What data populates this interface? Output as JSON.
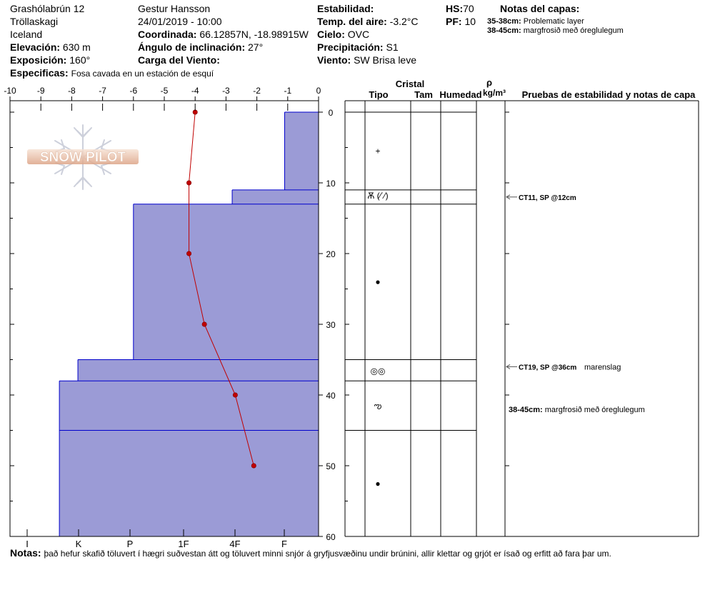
{
  "header": {
    "location": "Grashólabrún 12",
    "region": "Tröllaskagi",
    "country": "Iceland",
    "elevation_label": "Elevación:",
    "elevation_value": "630 m",
    "aspect_label": "Exposición:",
    "aspect_value": "160°",
    "specifics_label": "Especificas:",
    "specifics_value": "Fosa cavada en un estación de esquí",
    "observer": "Gestur Hansson",
    "datetime": "24/01/2019 - 10:00",
    "coord_label": "Coordinada:",
    "coord_value": "66.12857N, -18.98915W",
    "slope_label": "Ángulo de inclinación:",
    "slope_value": "27°",
    "wind_load_label": "Carga del Viento:",
    "stability_label": "Estabilidad:",
    "air_temp_label": "Temp. del aire:",
    "air_temp_value": "-3.2°C",
    "sky_label": "Cielo:",
    "sky_value": "OVC",
    "precip_label": "Precipitación:",
    "precip_value": "S1",
    "wind_label": "Viento:",
    "wind_value": "SW Brisa leve",
    "hs_label": "HS:",
    "hs_value": "70",
    "pf_label": "PF:",
    "pf_value": "10",
    "layer_notes_title": "Notas del capas:",
    "layer_notes": [
      {
        "range": "35-38cm:",
        "text": "Problematic layer"
      },
      {
        "range": "38-45cm:",
        "text": "margfrosið með óreglulegum"
      }
    ]
  },
  "logo": {
    "text": "SNOW PILOT"
  },
  "colors": {
    "hardness_fill": "#9b9bd6",
    "hardness_line": "#0000cc",
    "temp_line": "#c00000"
  },
  "chart_data": {
    "type": "area",
    "x_axis_top": {
      "ticks": [
        "-10",
        "-9",
        "-8",
        "-7",
        "-6",
        "-5",
        "-4",
        "-3",
        "-2",
        "-1",
        "0"
      ],
      "range": [
        -10,
        0
      ]
    },
    "x_axis_bottom": {
      "ticks": [
        "I",
        "K",
        "P",
        "1F",
        "4F",
        "F"
      ]
    },
    "y_axis": {
      "ticks": [
        "0",
        "10",
        "20",
        "30",
        "40",
        "50",
        "60"
      ],
      "range": [
        0,
        60
      ]
    },
    "temperature_profile": [
      {
        "depth": 0,
        "temp": -4.0
      },
      {
        "depth": 10,
        "temp": -4.2
      },
      {
        "depth": 20,
        "temp": -4.2
      },
      {
        "depth": 30,
        "temp": -3.7
      },
      {
        "depth": 40,
        "temp": -2.7
      },
      {
        "depth": 50,
        "temp": -2.1
      }
    ],
    "hardness_layers": [
      {
        "top": 0,
        "bottom": 11,
        "x": -1.1
      },
      {
        "top": 11,
        "bottom": 13,
        "x": -2.8
      },
      {
        "top": 13,
        "bottom": 35,
        "x": -6.0
      },
      {
        "top": 35,
        "bottom": 38,
        "x": -7.8
      },
      {
        "top": 38,
        "bottom": 45,
        "x": -8.4
      },
      {
        "top": 45,
        "bottom": 60,
        "x": -8.4
      }
    ]
  },
  "table": {
    "cristal": "Cristal",
    "tipo": "Tipo",
    "tam": "Tam",
    "humedad": "Humedad",
    "rho": "ρ",
    "density_unit": "kg/m³",
    "tests_header": "Pruebas de estabilidad y notas de capa",
    "boundaries": [
      0,
      11,
      13,
      35,
      38,
      45
    ],
    "grains": [
      {
        "depth": 5.5,
        "symbol": "+"
      },
      {
        "depth": 11.8,
        "symbol": "Ѫ (⁄˙⁄)"
      },
      {
        "depth": 24,
        "symbol": "●"
      },
      {
        "depth": 36.6,
        "symbol": "◎◎"
      },
      {
        "depth": 41.5,
        "symbol": "ఌ"
      },
      {
        "depth": 52.5,
        "symbol": "●"
      }
    ],
    "tests": [
      {
        "depth": 12,
        "label": "CT11, SP @12cm",
        "note": ""
      },
      {
        "depth": 36,
        "label": "CT19, SP @36cm",
        "note": "marenslag"
      }
    ],
    "layer_note_range": "38-45cm:",
    "layer_note_text": "margfrosið með óreglulegum"
  },
  "footer": {
    "notes_label": "Notas:",
    "notes_text": "það hefur skafið töluvert í hægri suðvestan átt og töluvert minni snjór á gryfjusvæðinu undir brúnini, allir klettar og grjót er ísað og erfitt að fara þar um."
  }
}
